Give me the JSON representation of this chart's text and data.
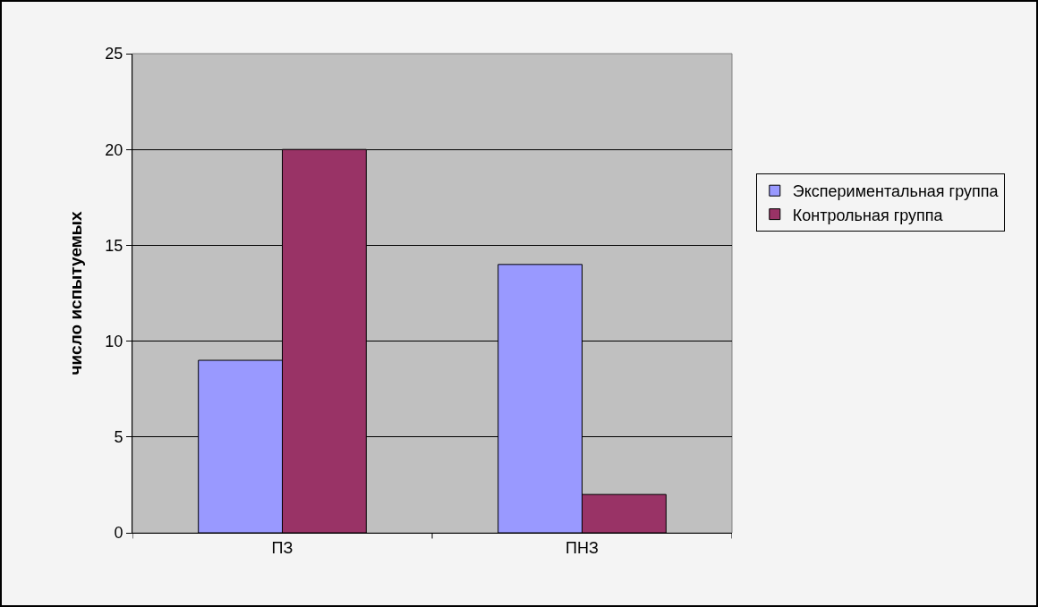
{
  "chart_data": {
    "type": "bar",
    "ylabel": "число испытуемых",
    "categories": [
      "ПЗ",
      "ПНЗ"
    ],
    "series": [
      {
        "name": "Экспериментальная группа",
        "color": "#9999ff",
        "values": [
          9,
          14
        ]
      },
      {
        "name": "Контрольная группа",
        "color": "#993366",
        "values": [
          20,
          2
        ]
      }
    ],
    "ylim": [
      0,
      25
    ],
    "yticks": [
      0,
      5,
      10,
      15,
      20,
      25
    ],
    "grid": "y",
    "legend": "right"
  }
}
